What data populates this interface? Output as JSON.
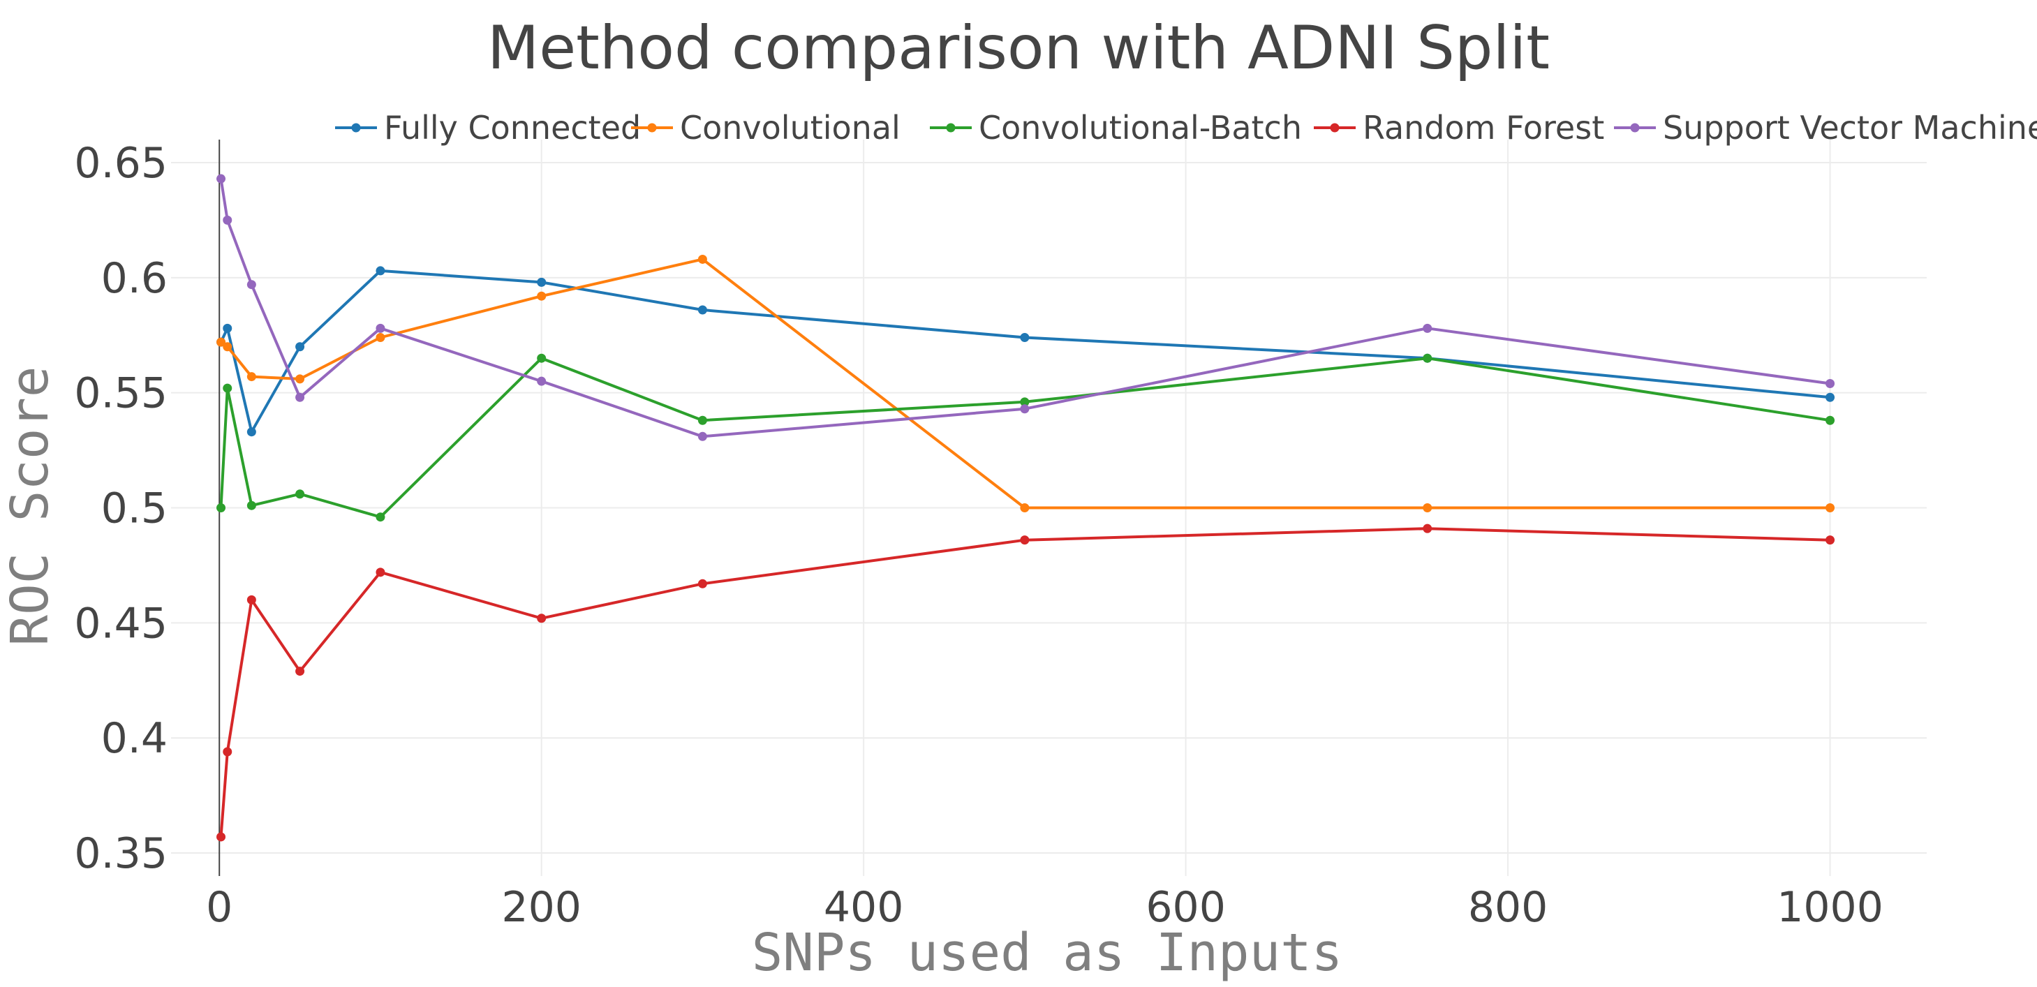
{
  "chart_data": {
    "type": "line",
    "title": "Method comparison with ADNI Split",
    "xlabel": "SNPs used as Inputs",
    "ylabel": "ROC Score",
    "xlim": [
      -30,
      1060
    ],
    "ylim": [
      0.34,
      0.66
    ],
    "x_ticks": [
      0,
      200,
      400,
      600,
      800,
      1000
    ],
    "x_tick_labels": [
      "0",
      "200",
      "400",
      "600",
      "800",
      "1000"
    ],
    "y_ticks": [
      0.35,
      0.4,
      0.45,
      0.5,
      0.55,
      0.6,
      0.65
    ],
    "y_tick_labels": [
      "0.35",
      "0.4",
      "0.45",
      "0.5",
      "0.55",
      "0.6",
      "0.65"
    ],
    "grid": true,
    "legend_position": "top",
    "x": [
      1,
      5,
      20,
      50,
      100,
      200,
      300,
      500,
      750,
      1000
    ],
    "series": [
      {
        "name": "Fully Connected",
        "color": "#1f77b4",
        "values": [
          0.572,
          0.578,
          0.533,
          0.57,
          0.603,
          0.598,
          0.586,
          0.574,
          0.565,
          0.548
        ]
      },
      {
        "name": "Convolutional",
        "color": "#ff7f0e",
        "values": [
          0.572,
          0.57,
          0.557,
          0.556,
          0.574,
          0.592,
          0.608,
          0.5,
          0.5,
          0.5
        ]
      },
      {
        "name": "Convolutional-Batch",
        "color": "#2ca02c",
        "values": [
          0.5,
          0.552,
          0.501,
          0.506,
          0.496,
          0.565,
          0.538,
          0.546,
          0.565,
          0.538
        ]
      },
      {
        "name": "Random Forest",
        "color": "#d62728",
        "values": [
          0.357,
          0.394,
          0.46,
          0.429,
          0.472,
          0.452,
          0.467,
          0.486,
          0.491,
          0.486
        ]
      },
      {
        "name": "Support Vector Machine",
        "color": "#9467bd",
        "values": [
          0.643,
          0.625,
          0.597,
          0.548,
          0.578,
          0.555,
          0.531,
          0.543,
          0.578,
          0.554
        ]
      }
    ]
  }
}
